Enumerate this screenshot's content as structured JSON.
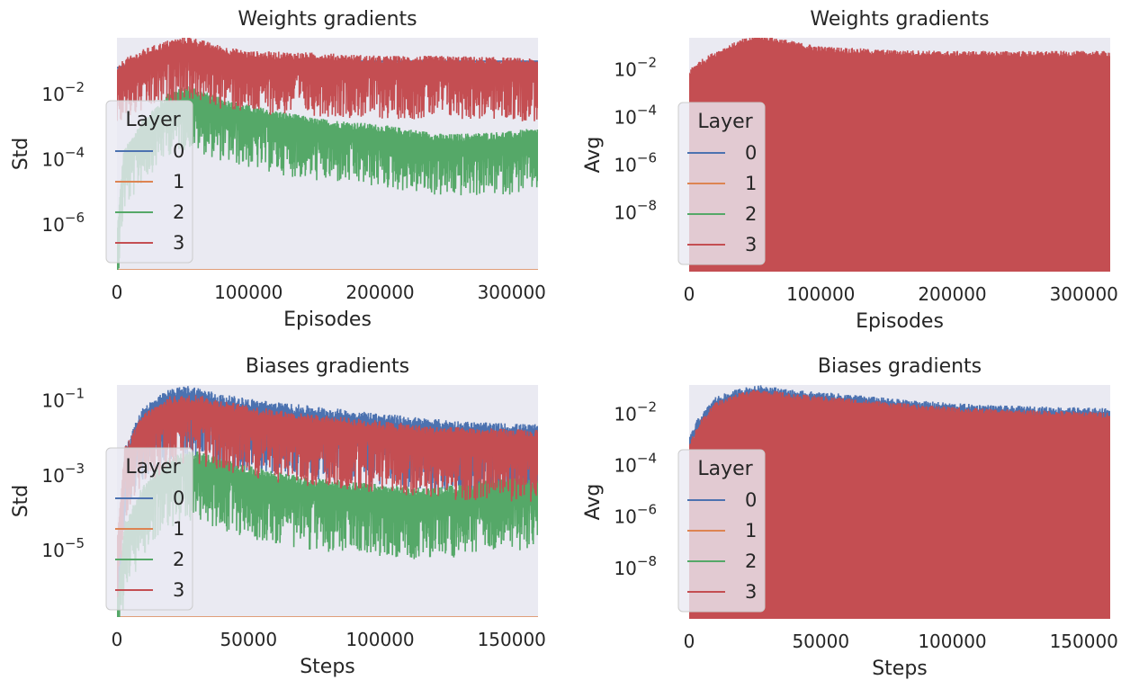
{
  "colors": {
    "background": "#eaeaf2",
    "layer0": "#4c72b0",
    "layer1": "#dd8452",
    "layer2": "#55a868",
    "layer3": "#c44e52"
  },
  "chart_data": [
    {
      "type": "line",
      "title": "Weights gradients",
      "xlabel": "Episodes",
      "ylabel": "Std",
      "yscale": "log",
      "xlim": [
        0,
        320000
      ],
      "ylim_exp": [
        -7.4,
        -0.3
      ],
      "xticks": [
        0,
        100000,
        200000,
        300000
      ],
      "xtick_labels": [
        "0",
        "100000",
        "200000",
        "300000"
      ],
      "yticks": [
        {
          "base": "10",
          "exp": "−2",
          "value_exp": -2
        },
        {
          "base": "10",
          "exp": "−4",
          "value_exp": -4
        },
        {
          "base": "10",
          "exp": "−6",
          "value_exp": -6
        }
      ],
      "legend": {
        "title": "Layer",
        "location": "lower-left",
        "entries": [
          "0",
          "1",
          "2",
          "3"
        ]
      },
      "grid": false,
      "series": [
        {
          "name": "0",
          "x": [
            0,
            5000,
            20000,
            40000,
            60000,
            80000,
            100000,
            150000,
            200000,
            250000,
            320000
          ],
          "y_exp": [
            -1.2,
            -1.15,
            -1.05,
            -1.0,
            -1.0,
            -1.0,
            -1.0,
            -1.0,
            -1.0,
            -1.0,
            -1.0
          ]
        },
        {
          "name": "1",
          "x": [
            0,
            320000
          ],
          "y_exp": [
            -7.4,
            -7.4
          ]
        },
        {
          "name": "2",
          "x": [
            0,
            5000,
            20000,
            40000,
            55000,
            80000,
            100000,
            150000,
            200000,
            250000,
            300000,
            320000
          ],
          "y_exp": [
            -6.5,
            -4.0,
            -3.0,
            -2.2,
            -2.0,
            -2.4,
            -2.6,
            -3.0,
            -3.2,
            -3.5,
            -3.4,
            -3.3
          ]
        },
        {
          "name": "3",
          "x": [
            0,
            5000,
            20000,
            40000,
            55000,
            80000,
            100000,
            150000,
            200000,
            250000,
            300000,
            320000
          ],
          "y_exp": [
            -1.5,
            -1.2,
            -0.9,
            -0.6,
            -0.5,
            -0.8,
            -0.95,
            -1.0,
            -1.1,
            -1.1,
            -1.15,
            -1.2
          ]
        }
      ]
    },
    {
      "type": "line",
      "title": "Weights gradients",
      "xlabel": "Episodes",
      "ylabel": "Avg",
      "yscale": "log",
      "xlim": [
        0,
        320000
      ],
      "ylim_exp": [
        -10.5,
        -0.7
      ],
      "xticks": [
        0,
        100000,
        200000,
        300000
      ],
      "xtick_labels": [
        "0",
        "100000",
        "200000",
        "300000"
      ],
      "yticks": [
        {
          "base": "10",
          "exp": "−2",
          "value_exp": -2
        },
        {
          "base": "10",
          "exp": "−4",
          "value_exp": -4
        },
        {
          "base": "10",
          "exp": "−6",
          "value_exp": -6
        },
        {
          "base": "10",
          "exp": "−8",
          "value_exp": -8
        }
      ],
      "legend": {
        "title": "Layer",
        "location": "lower-left",
        "entries": [
          "0",
          "1",
          "2",
          "3"
        ]
      },
      "grid": false,
      "series": [
        {
          "name": "0",
          "x": [
            0,
            320000
          ],
          "y_exp": [
            -10.5,
            -10.5
          ]
        },
        {
          "name": "1",
          "x": [
            0,
            320000
          ],
          "y_exp": [
            -10.5,
            -10.5
          ]
        },
        {
          "name": "2",
          "x": [
            0,
            320000
          ],
          "y_exp": [
            -10.5,
            -10.5
          ]
        },
        {
          "name": "3",
          "x": [
            0,
            5000,
            20000,
            40000,
            55000,
            80000,
            100000,
            150000,
            200000,
            250000,
            320000
          ],
          "y_exp": [
            -2.3,
            -2.0,
            -1.5,
            -1.0,
            -0.8,
            -1.1,
            -1.3,
            -1.45,
            -1.5,
            -1.5,
            -1.5
          ]
        }
      ]
    },
    {
      "type": "line",
      "title": "Biases gradients",
      "xlabel": "Steps",
      "ylabel": "Std",
      "yscale": "log",
      "xlim": [
        0,
        160000
      ],
      "ylim_exp": [
        -6.8,
        -0.6
      ],
      "xticks": [
        0,
        50000,
        100000,
        150000
      ],
      "xtick_labels": [
        "0",
        "50000",
        "100000",
        "150000"
      ],
      "yticks": [
        {
          "base": "10",
          "exp": "−1",
          "value_exp": -1
        },
        {
          "base": "10",
          "exp": "−3",
          "value_exp": -3
        },
        {
          "base": "10",
          "exp": "−5",
          "value_exp": -5
        }
      ],
      "legend": {
        "title": "Layer",
        "location": "lower-left",
        "entries": [
          "0",
          "1",
          "2",
          "3"
        ]
      },
      "grid": false,
      "series": [
        {
          "name": "0",
          "x": [
            0,
            3000,
            10000,
            20000,
            28000,
            40000,
            60000,
            80000,
            100000,
            120000,
            140000,
            160000
          ],
          "y_exp": [
            -6.5,
            -2.5,
            -1.4,
            -0.95,
            -0.85,
            -1.1,
            -1.3,
            -1.45,
            -1.6,
            -1.75,
            -1.85,
            -1.9
          ]
        },
        {
          "name": "1",
          "x": [
            0,
            160000
          ],
          "y_exp": [
            -6.8,
            -6.8
          ]
        },
        {
          "name": "2",
          "x": [
            0,
            3000,
            10000,
            20000,
            30000,
            50000,
            70000,
            100000,
            120000,
            140000,
            160000
          ],
          "y_exp": [
            -6.5,
            -4.5,
            -3.5,
            -2.7,
            -2.6,
            -3.0,
            -3.3,
            -3.5,
            -3.6,
            -3.4,
            -3.3
          ]
        },
        {
          "name": "3",
          "x": [
            0,
            3000,
            10000,
            20000,
            30000,
            50000,
            70000,
            100000,
            120000,
            140000,
            160000
          ],
          "y_exp": [
            -5.0,
            -2.5,
            -1.6,
            -1.15,
            -1.1,
            -1.4,
            -1.6,
            -1.8,
            -1.95,
            -2.0,
            -2.05
          ]
        }
      ]
    },
    {
      "type": "line",
      "title": "Biases gradients",
      "xlabel": "Steps",
      "ylabel": "Avg",
      "yscale": "log",
      "xlim": [
        0,
        160000
      ],
      "ylim_exp": [
        -10.0,
        -0.9
      ],
      "xticks": [
        0,
        50000,
        100000,
        150000
      ],
      "xtick_labels": [
        "0",
        "50000",
        "100000",
        "150000"
      ],
      "yticks": [
        {
          "base": "10",
          "exp": "−2",
          "value_exp": -2
        },
        {
          "base": "10",
          "exp": "−4",
          "value_exp": -4
        },
        {
          "base": "10",
          "exp": "−6",
          "value_exp": -6
        },
        {
          "base": "10",
          "exp": "−8",
          "value_exp": -8
        }
      ],
      "legend": {
        "title": "Layer",
        "location": "lower-left",
        "entries": [
          "0",
          "1",
          "2",
          "3"
        ]
      },
      "grid": false,
      "series": [
        {
          "name": "0",
          "x": [
            0,
            3000,
            10000,
            20000,
            28000,
            40000,
            60000,
            80000,
            100000,
            120000,
            140000,
            160000
          ],
          "y_exp": [
            -3.2,
            -2.5,
            -1.6,
            -1.25,
            -1.15,
            -1.35,
            -1.5,
            -1.7,
            -1.85,
            -1.95,
            -2.0,
            -2.05
          ]
        },
        {
          "name": "1",
          "x": [
            0,
            160000
          ],
          "y_exp": [
            -10.0,
            -10.0
          ]
        },
        {
          "name": "2",
          "x": [
            0,
            160000
          ],
          "y_exp": [
            -10.0,
            -10.0
          ]
        },
        {
          "name": "3",
          "x": [
            0,
            3000,
            10000,
            20000,
            28000,
            40000,
            60000,
            80000,
            100000,
            120000,
            140000,
            160000
          ],
          "y_exp": [
            -3.5,
            -2.7,
            -1.8,
            -1.4,
            -1.3,
            -1.5,
            -1.65,
            -1.85,
            -2.0,
            -2.1,
            -2.15,
            -2.2
          ]
        }
      ]
    }
  ]
}
